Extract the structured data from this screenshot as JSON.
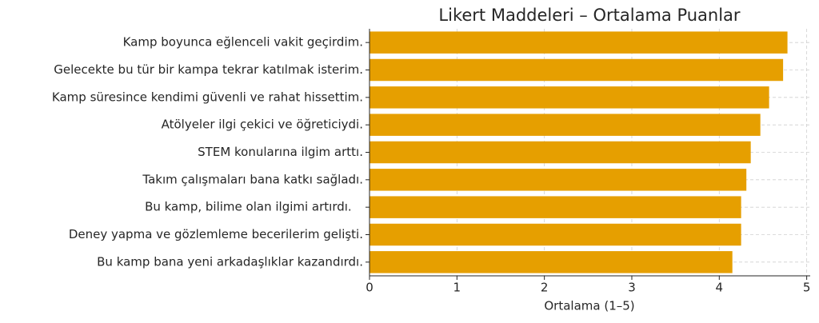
{
  "chart_data": {
    "type": "hbar",
    "title": "Likert Maddeleri – Ortalama Puanlar",
    "x_label": "Ortalama (1–5)",
    "categories": [
      "Kamp boyunca eğlenceli vakit geçirdim.",
      "Gelecekte bu tür bir kampa tekrar katılmak isterim.",
      "Kamp süresince kendimi güvenli ve rahat hissettim.",
      "Atölyeler ilgi çekici ve öğreticiydi.",
      "STEM konularına ilgim arttı.",
      "Takım çalışmaları bana katkı sağladı.",
      "Bu kamp, bilime olan ilgimi artırdı.   ",
      "Deney yapma ve gözlemleme becerilerim gelişti.",
      "Bu kamp bana yeni arkadaşlıklar kazandırdı."
    ],
    "values": [
      4.78,
      4.73,
      4.57,
      4.47,
      4.36,
      4.31,
      4.25,
      4.25,
      4.15
    ],
    "color": "#e69f00",
    "xlim": [
      0,
      5.04
    ],
    "xticks": [
      0,
      1,
      2,
      3,
      4,
      5
    ],
    "grid": true
  }
}
